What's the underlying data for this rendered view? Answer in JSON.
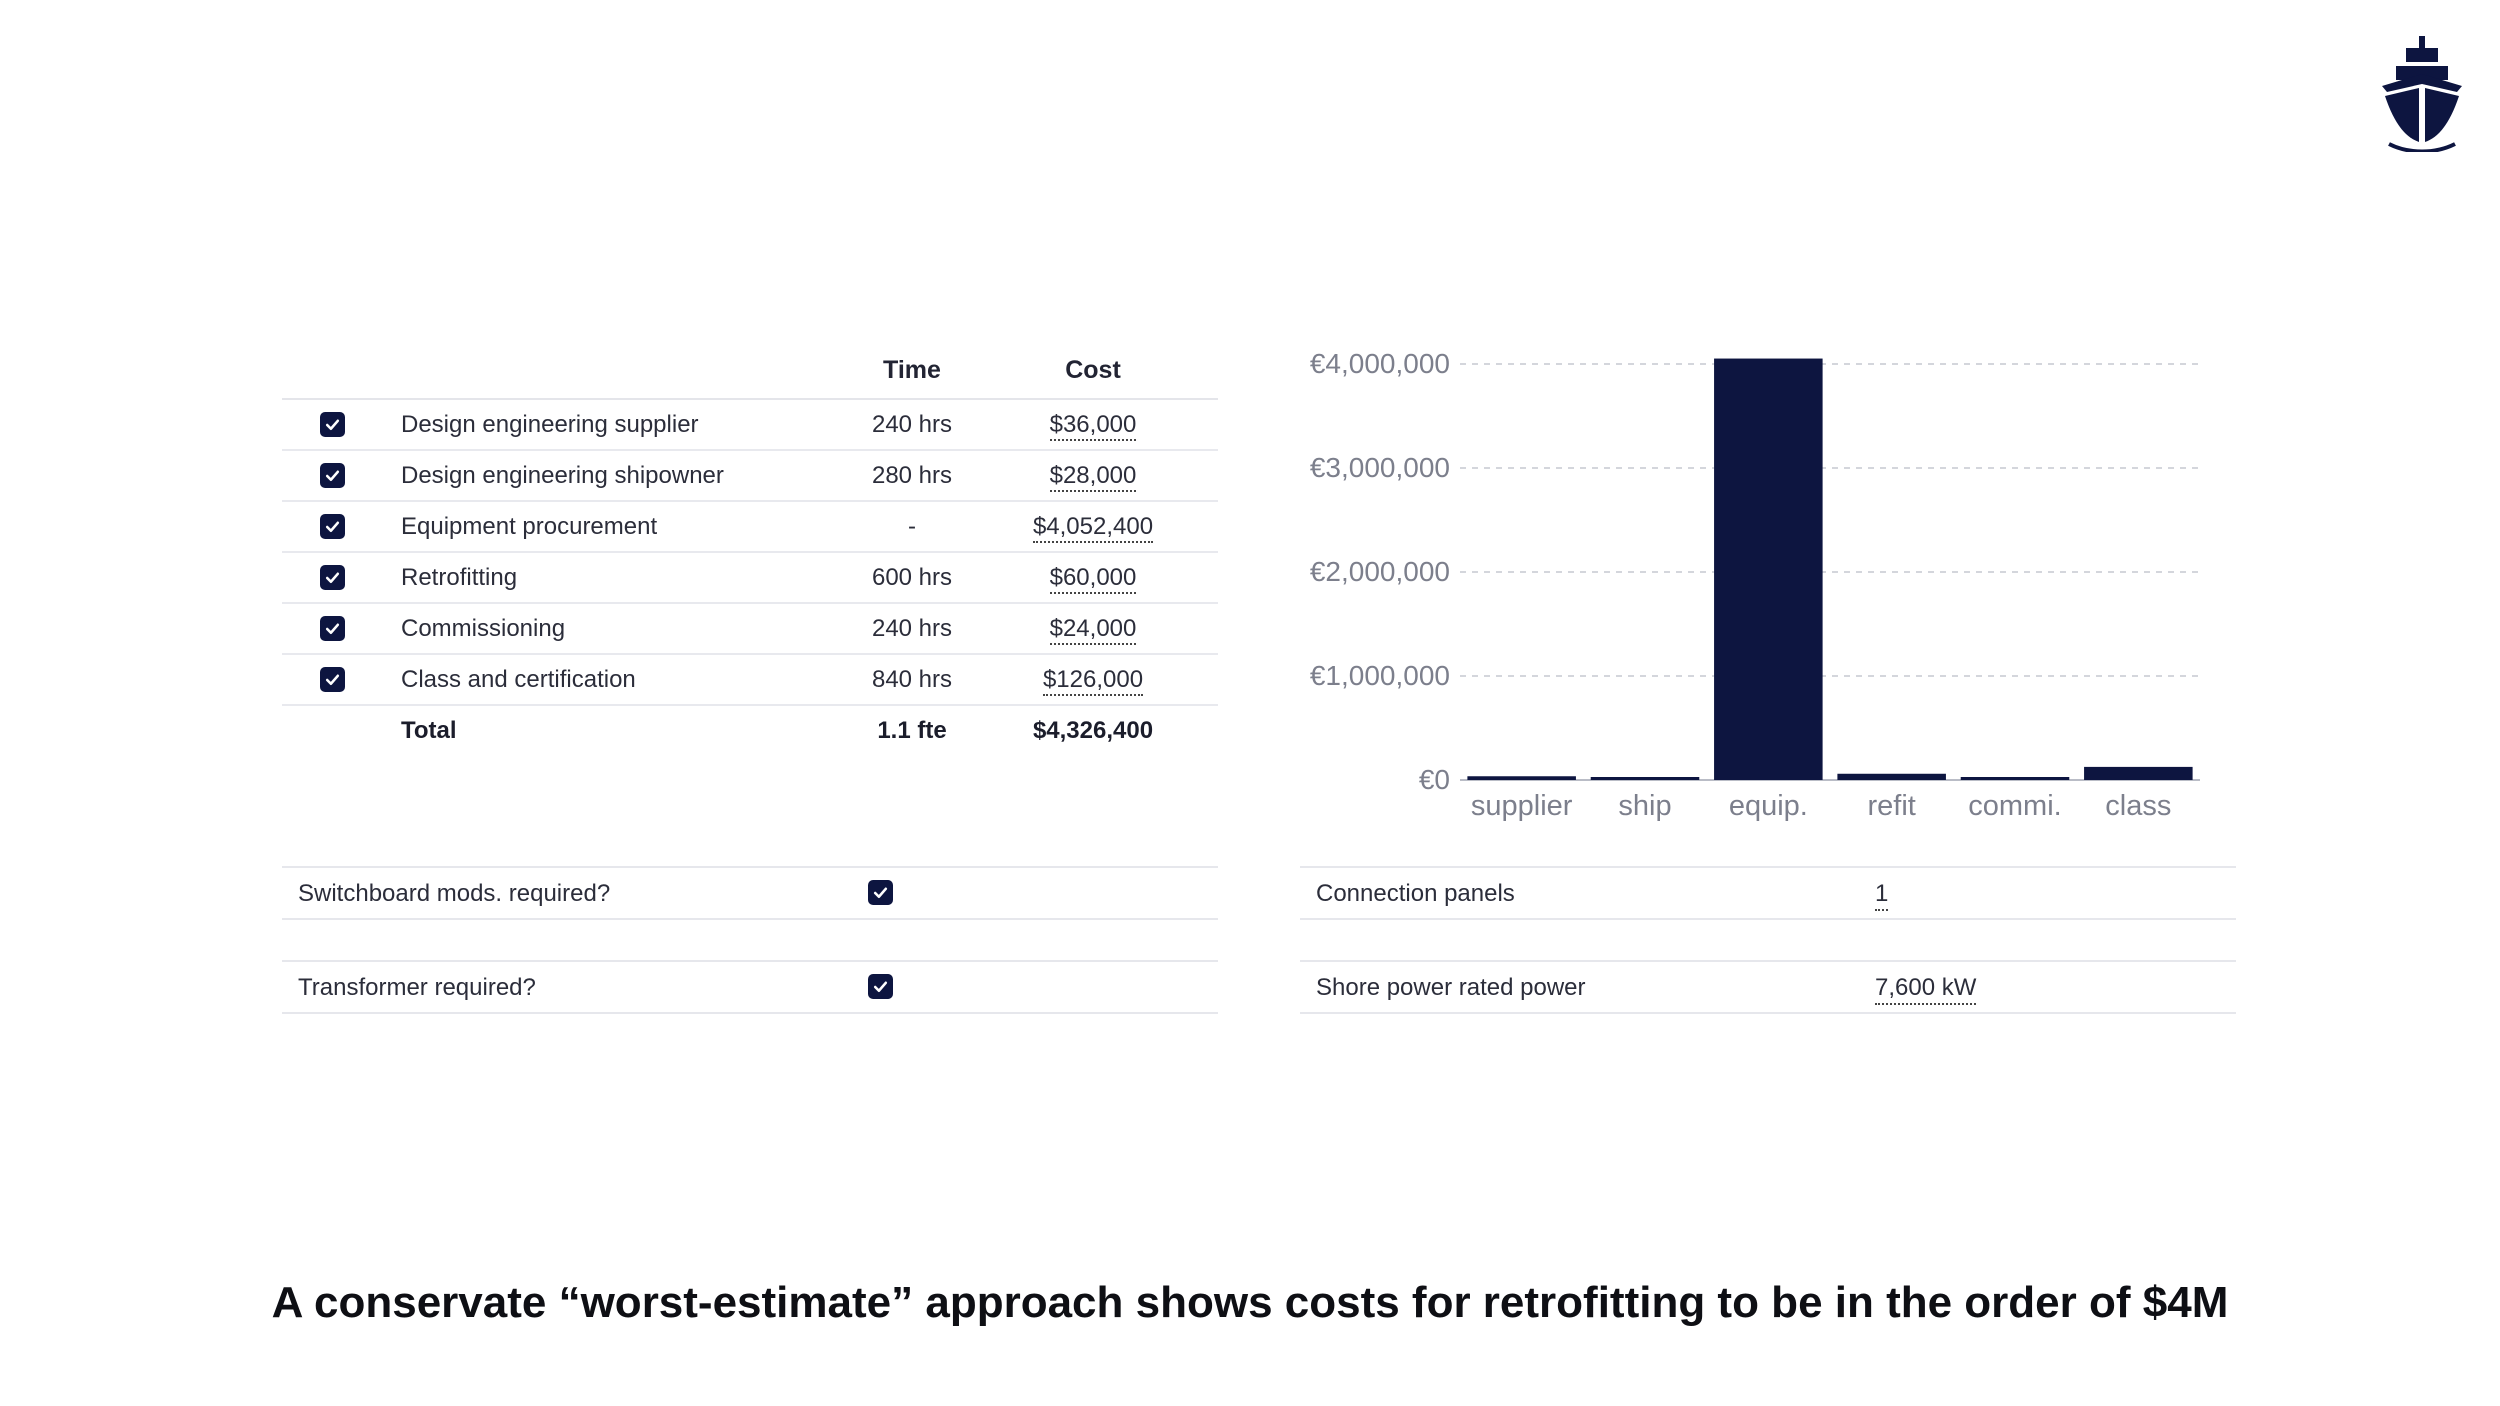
{
  "logo": {
    "icon": "ship-icon",
    "color": "#0d1540"
  },
  "cost_table": {
    "headers": {
      "time": "Time",
      "cost": "Cost"
    },
    "rows": [
      {
        "label": "Design engineering supplier",
        "time": "240 hrs",
        "cost": "$36,000",
        "checked": true
      },
      {
        "label": "Design engineering shipowner",
        "time": "280 hrs",
        "cost": "$28,000",
        "checked": true
      },
      {
        "label": "Equipment procurement",
        "time": "-",
        "cost": "$4,052,400",
        "checked": true
      },
      {
        "label": "Retrofitting",
        "time": "600 hrs",
        "cost": "$60,000",
        "checked": true
      },
      {
        "label": "Commissioning",
        "time": "240 hrs",
        "cost": "$24,000",
        "checked": true
      },
      {
        "label": "Class and certification",
        "time": "840 hrs",
        "cost": "$126,000",
        "checked": true
      }
    ],
    "total": {
      "label": "Total",
      "time": "1.1 fte",
      "cost": "$4,326,400"
    }
  },
  "options": {
    "switchboard": {
      "label": "Switchboard mods. required?",
      "checked": true
    },
    "transformer": {
      "label": "Transformer required?",
      "checked": true
    },
    "connection_panels": {
      "label": "Connection panels",
      "value": "1"
    },
    "shore_power": {
      "label": "Shore power rated power",
      "value": "7,600 kW"
    }
  },
  "chart_data": {
    "type": "bar",
    "categories": [
      "supplier",
      "ship",
      "equip.",
      "refit",
      "commi.",
      "class"
    ],
    "values": [
      36000,
      28000,
      4052400,
      60000,
      24000,
      126000
    ],
    "yticks": [
      "€0",
      "€1,000,000",
      "€2,000,000",
      "€3,000,000",
      "€4,000,000"
    ],
    "ylim": [
      0,
      4000000
    ],
    "grid": true,
    "bar_color": "#0d1540"
  },
  "caption": "A conservate “worst-estimate” approach shows costs for retrofitting to be in the order of $4M"
}
